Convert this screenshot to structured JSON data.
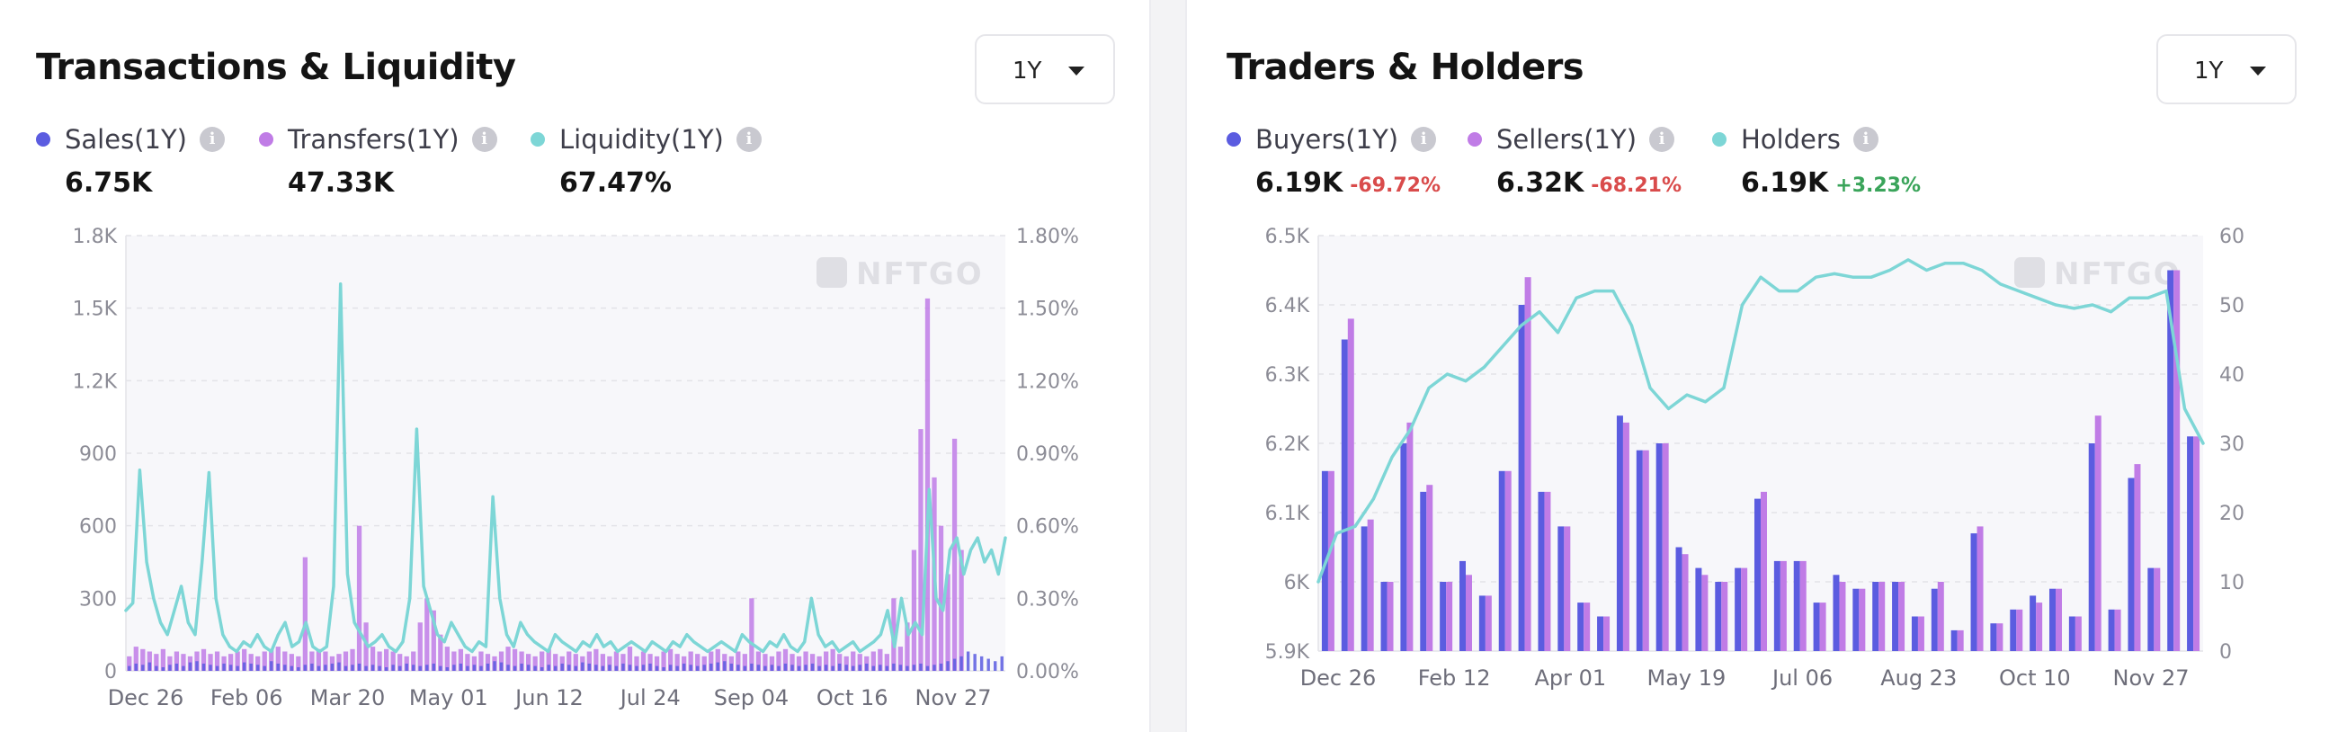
{
  "panels": [
    {
      "title": "Transactions & Liquidity",
      "period": "1Y",
      "legend": [
        {
          "name": "Sales(1Y)",
          "value": "6.75K",
          "color": "#5b5ce0"
        },
        {
          "name": "Transfers(1Y)",
          "value": "47.33K",
          "color": "#c07ce6"
        },
        {
          "name": "Liquidity(1Y)",
          "value": "67.47%",
          "color": "#7dd6d6"
        }
      ],
      "watermark": "NFTGO"
    },
    {
      "title": "Traders & Holders",
      "period": "1Y",
      "legend": [
        {
          "name": "Buyers(1Y)",
          "value": "6.19K",
          "change": "-69.72%",
          "change_color": "#d94b4b",
          "color": "#5b5ce0"
        },
        {
          "name": "Sellers(1Y)",
          "value": "6.32K",
          "change": "-68.21%",
          "change_color": "#d94b4b",
          "color": "#c07ce6"
        },
        {
          "name": "Holders",
          "value": "6.19K",
          "change": "+3.23%",
          "change_color": "#3aa45a",
          "color": "#7dd6d6"
        }
      ],
      "watermark": "NFTGO"
    }
  ],
  "chart_data": [
    {
      "type": "bar",
      "title": "Transactions & Liquidity",
      "x_ticks": [
        "Dec 26",
        "Feb 06",
        "Mar 20",
        "May 01",
        "Jun 12",
        "Jul 24",
        "Sep 04",
        "Oct 16",
        "Nov 27"
      ],
      "y_left_ticks": [
        "0",
        "300",
        "600",
        "900",
        "1.2K",
        "1.5K",
        "1.8K"
      ],
      "y_left_range": [
        0,
        1800
      ],
      "y_right_ticks": [
        "0.00%",
        "0.30%",
        "0.60%",
        "0.90%",
        "1.20%",
        "1.50%",
        "1.80%"
      ],
      "y_right_range": [
        0,
        1.8
      ],
      "grid": true,
      "series": [
        {
          "name": "Sales(1Y)",
          "type": "bar",
          "axis": "left",
          "color": "#5b5ce0",
          "values": [
            20,
            30,
            25,
            35,
            20,
            15,
            25,
            30,
            20,
            35,
            40,
            30,
            25,
            20,
            30,
            25,
            20,
            35,
            30,
            25,
            20,
            40,
            30,
            25,
            20,
            15,
            25,
            30,
            20,
            25,
            30,
            35,
            20,
            25,
            30,
            20,
            25,
            20,
            15,
            25,
            20,
            30,
            25,
            20,
            25,
            30,
            20,
            15,
            25,
            30,
            20,
            25,
            20,
            30,
            40,
            35,
            25,
            20,
            30,
            25,
            20,
            15,
            25,
            20,
            30,
            25,
            20,
            35,
            30,
            25,
            20,
            25,
            20,
            30,
            25,
            20,
            25,
            30,
            20,
            15,
            25,
            20,
            30,
            25,
            20,
            25,
            30,
            35,
            40,
            30,
            25,
            20,
            30,
            25,
            20,
            25,
            20,
            30,
            25,
            20,
            25,
            30,
            20,
            25,
            20,
            30,
            25,
            20,
            25,
            30,
            20,
            25,
            20,
            30,
            25,
            20,
            25,
            30,
            20,
            25,
            30,
            40,
            50,
            60,
            80,
            70,
            60,
            50,
            40,
            60
          ]
        },
        {
          "name": "Transfers(1Y)",
          "type": "bar",
          "axis": "left",
          "color": "#c07ce6",
          "values": [
            60,
            100,
            90,
            80,
            70,
            90,
            60,
            80,
            70,
            60,
            80,
            90,
            70,
            80,
            60,
            70,
            80,
            90,
            70,
            60,
            80,
            90,
            100,
            80,
            70,
            60,
            470,
            80,
            90,
            80,
            60,
            70,
            80,
            90,
            600,
            200,
            100,
            80,
            90,
            80,
            70,
            60,
            80,
            200,
            300,
            250,
            150,
            100,
            80,
            90,
            70,
            60,
            80,
            70,
            60,
            80,
            100,
            90,
            80,
            70,
            60,
            80,
            90,
            70,
            60,
            80,
            70,
            60,
            80,
            90,
            70,
            60,
            80,
            70,
            100,
            60,
            80,
            70,
            60,
            80,
            90,
            70,
            60,
            80,
            70,
            60,
            80,
            90,
            70,
            60,
            80,
            70,
            300,
            80,
            70,
            60,
            80,
            90,
            70,
            60,
            80,
            70,
            60,
            80,
            90,
            70,
            60,
            80,
            70,
            60,
            80,
            90,
            70,
            300,
            100,
            200,
            500,
            1000,
            1540,
            800,
            600,
            400,
            960,
            500
          ]
        },
        {
          "name": "Liquidity(1Y)",
          "type": "line",
          "axis": "right",
          "color": "#7dd6d6",
          "values": [
            0.25,
            0.28,
            0.83,
            0.45,
            0.3,
            0.2,
            0.15,
            0.25,
            0.35,
            0.2,
            0.15,
            0.45,
            0.82,
            0.3,
            0.15,
            0.1,
            0.08,
            0.12,
            0.1,
            0.15,
            0.1,
            0.08,
            0.15,
            0.2,
            0.1,
            0.12,
            0.2,
            0.1,
            0.08,
            0.1,
            0.35,
            1.6,
            0.4,
            0.2,
            0.15,
            0.1,
            0.12,
            0.15,
            0.1,
            0.08,
            0.12,
            0.3,
            1.0,
            0.35,
            0.25,
            0.15,
            0.12,
            0.2,
            0.15,
            0.1,
            0.08,
            0.12,
            0.1,
            0.72,
            0.3,
            0.15,
            0.1,
            0.2,
            0.15,
            0.12,
            0.1,
            0.08,
            0.15,
            0.12,
            0.1,
            0.08,
            0.12,
            0.1,
            0.15,
            0.1,
            0.12,
            0.08,
            0.1,
            0.12,
            0.1,
            0.08,
            0.12,
            0.1,
            0.08,
            0.12,
            0.1,
            0.15,
            0.12,
            0.1,
            0.08,
            0.1,
            0.12,
            0.1,
            0.08,
            0.15,
            0.12,
            0.1,
            0.08,
            0.12,
            0.1,
            0.15,
            0.1,
            0.08,
            0.12,
            0.3,
            0.15,
            0.1,
            0.12,
            0.08,
            0.1,
            0.12,
            0.08,
            0.1,
            0.12,
            0.15,
            0.25,
            0.1,
            0.3,
            0.15,
            0.2,
            0.15,
            0.75,
            0.3,
            0.25,
            0.5,
            0.55,
            0.4,
            0.5,
            0.55,
            0.45,
            0.5,
            0.4,
            0.55
          ]
        }
      ]
    },
    {
      "type": "bar",
      "title": "Traders & Holders",
      "x_ticks": [
        "Dec 26",
        "Feb 12",
        "Apr 01",
        "May 19",
        "Jul 06",
        "Aug 23",
        "Oct 10",
        "Nov 27"
      ],
      "y_left_ticks": [
        "5.9K",
        "6K",
        "6.1K",
        "6.2K",
        "6.3K",
        "6.4K",
        "6.5K"
      ],
      "y_left_range": [
        5900,
        6500
      ],
      "y_right_ticks": [
        "0",
        "10",
        "20",
        "30",
        "40",
        "50",
        "60"
      ],
      "y_right_range": [
        0,
        60
      ],
      "grid": true,
      "series": [
        {
          "name": "Buyers(1Y)",
          "type": "bar",
          "axis": "left",
          "color": "#5b5ce0",
          "values": [
            6160,
            6350,
            6080,
            6000,
            6200,
            6130,
            6000,
            6030,
            5980,
            6160,
            6400,
            6130,
            6080,
            5970,
            5950,
            6240,
            6190,
            6200,
            6050,
            6020,
            6000,
            6020,
            6120,
            6030,
            6030,
            5970,
            6010,
            5990,
            6000,
            6000,
            5950,
            5990,
            5930,
            6070,
            5940,
            5960,
            5980,
            5990,
            5950,
            6200,
            5960,
            6150,
            6020,
            6450,
            6210
          ]
        },
        {
          "name": "Sellers(1Y)",
          "type": "bar",
          "axis": "left",
          "color": "#c07ce6",
          "values": [
            6160,
            6380,
            6090,
            6000,
            6230,
            6140,
            6000,
            6010,
            5980,
            6160,
            6440,
            6130,
            6080,
            5970,
            5950,
            6230,
            6190,
            6200,
            6040,
            6010,
            6000,
            6020,
            6130,
            6030,
            6030,
            5970,
            6000,
            5990,
            6000,
            6000,
            5950,
            6000,
            5930,
            6080,
            5940,
            5960,
            5970,
            5990,
            5950,
            6240,
            5960,
            6170,
            6020,
            6450,
            6210
          ]
        },
        {
          "name": "Holders",
          "type": "line",
          "axis": "right",
          "color": "#7dd6d6",
          "values": [
            10,
            17,
            18,
            22,
            28,
            32,
            38,
            40,
            39,
            41,
            44,
            47,
            49,
            46,
            51,
            52,
            52,
            47,
            38,
            35,
            37,
            36,
            38,
            50,
            54,
            52,
            52,
            54,
            54.5,
            54,
            54,
            55,
            56.5,
            55,
            56,
            56,
            55,
            53,
            52,
            51,
            50,
            49.5,
            50,
            49,
            51,
            51,
            52,
            35,
            30
          ]
        }
      ]
    }
  ]
}
